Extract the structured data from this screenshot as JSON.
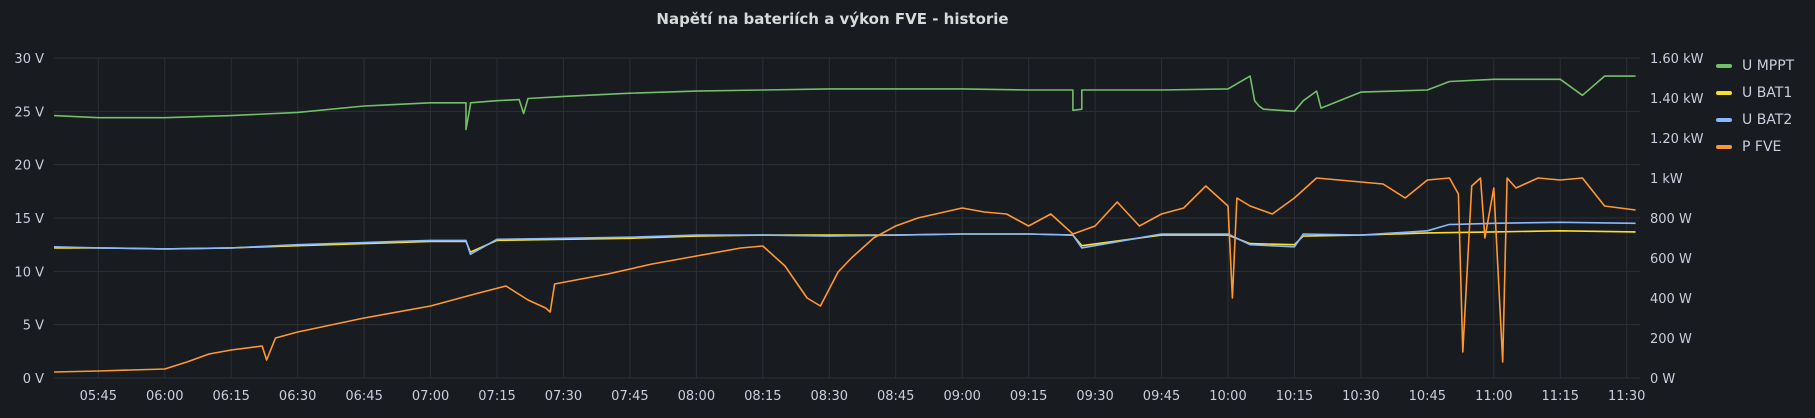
{
  "panel": {
    "title": "Napětí na bateriích a výkon FVE - historie"
  },
  "colors": {
    "U MPPT": "#73bf69",
    "U BAT1": "#fade2a",
    "U BAT2": "#8ab8ff",
    "P FVE": "#ff9830",
    "grid": "#2c3035",
    "text": "#ccccdc"
  },
  "chart_data": {
    "type": "line",
    "title": "Napětí na bateriích a výkon FVE - historie",
    "legend_position": "right",
    "grid": true,
    "x_ticks": [
      "05:45",
      "06:00",
      "06:15",
      "06:30",
      "06:45",
      "07:00",
      "07:15",
      "07:30",
      "07:45",
      "08:00",
      "08:15",
      "08:30",
      "08:45",
      "09:00",
      "09:15",
      "09:30",
      "09:45",
      "10:00",
      "10:15",
      "10:30",
      "10:45",
      "11:00",
      "11:15",
      "11:30"
    ],
    "y_left": {
      "ticks": [
        "0 V",
        "5 V",
        "10 V",
        "15 V",
        "20 V",
        "25 V",
        "30 V"
      ],
      "range": [
        0,
        30
      ]
    },
    "y_right": {
      "ticks": [
        "0 W",
        "200 W",
        "400 W",
        "600 W",
        "800 W",
        "1 kW",
        "1.20 kW",
        "1.40 kW",
        "1.60 kW"
      ],
      "range": [
        0,
        1600
      ]
    },
    "series": [
      {
        "name": "U MPPT",
        "axis": "left",
        "x": [
          "05:35",
          "05:45",
          "06:00",
          "06:15",
          "06:30",
          "06:45",
          "07:00",
          "07:08",
          "07:08",
          "07:09",
          "07:09",
          "07:15",
          "07:20",
          "07:21",
          "07:22",
          "07:30",
          "07:45",
          "08:00",
          "08:15",
          "08:30",
          "08:45",
          "09:00",
          "09:15",
          "09:25",
          "09:25",
          "09:27",
          "09:27",
          "09:45",
          "10:00",
          "10:05",
          "10:06",
          "10:07",
          "10:08",
          "10:15",
          "10:17",
          "10:20",
          "10:21",
          "10:30",
          "10:45",
          "10:50",
          "11:00",
          "11:15",
          "11:20",
          "11:25",
          "11:32"
        ],
        "values": [
          24.6,
          24.4,
          24.4,
          24.6,
          24.9,
          25.5,
          25.8,
          25.8,
          23.3,
          25.6,
          25.8,
          26.0,
          26.1,
          24.8,
          26.2,
          26.4,
          26.7,
          26.9,
          27.0,
          27.1,
          27.1,
          27.1,
          27.0,
          27.0,
          25.1,
          25.2,
          27.0,
          27.0,
          27.1,
          28.3,
          26.0,
          25.5,
          25.2,
          25.0,
          26.0,
          26.9,
          25.3,
          26.8,
          27.0,
          27.8,
          28.0,
          28.0,
          26.5,
          28.3,
          28.3
        ]
      },
      {
        "name": "U BAT1",
        "axis": "left",
        "x": [
          "05:35",
          "05:45",
          "06:00",
          "06:15",
          "06:30",
          "06:45",
          "07:00",
          "07:08",
          "07:09",
          "07:15",
          "07:30",
          "07:45",
          "08:00",
          "08:15",
          "08:30",
          "08:45",
          "09:00",
          "09:15",
          "09:25",
          "09:27",
          "09:45",
          "10:00",
          "10:05",
          "10:15",
          "10:17",
          "10:30",
          "10:45",
          "11:00",
          "11:15",
          "11:32"
        ],
        "values": [
          12.2,
          12.2,
          12.1,
          12.2,
          12.4,
          12.6,
          12.8,
          12.8,
          11.8,
          12.9,
          13.0,
          13.1,
          13.3,
          13.4,
          13.4,
          13.4,
          13.5,
          13.5,
          13.4,
          12.4,
          13.4,
          13.4,
          12.6,
          12.5,
          13.3,
          13.4,
          13.6,
          13.7,
          13.8,
          13.7
        ]
      },
      {
        "name": "U BAT2",
        "axis": "left",
        "x": [
          "05:35",
          "05:45",
          "06:00",
          "06:15",
          "06:30",
          "06:45",
          "07:00",
          "07:08",
          "07:09",
          "07:15",
          "07:30",
          "07:45",
          "08:00",
          "08:15",
          "08:30",
          "08:45",
          "09:00",
          "09:15",
          "09:25",
          "09:27",
          "09:45",
          "10:00",
          "10:05",
          "10:15",
          "10:17",
          "10:30",
          "10:45",
          "10:50",
          "10:51",
          "11:00",
          "11:15",
          "11:32"
        ],
        "values": [
          12.3,
          12.2,
          12.1,
          12.2,
          12.5,
          12.7,
          12.9,
          12.9,
          11.6,
          13.0,
          13.1,
          13.2,
          13.4,
          13.4,
          13.3,
          13.4,
          13.5,
          13.5,
          13.4,
          12.2,
          13.5,
          13.5,
          12.5,
          12.3,
          13.5,
          13.4,
          13.8,
          14.4,
          14.4,
          14.5,
          14.6,
          14.5
        ]
      },
      {
        "name": "P FVE",
        "axis": "right",
        "x": [
          "05:35",
          "05:45",
          "06:00",
          "06:05",
          "06:10",
          "06:15",
          "06:22",
          "06:23",
          "06:25",
          "06:30",
          "06:45",
          "07:00",
          "07:10",
          "07:17",
          "07:22",
          "07:26",
          "07:27",
          "07:28",
          "07:40",
          "07:50",
          "08:00",
          "08:10",
          "08:15",
          "08:20",
          "08:25",
          "08:28",
          "08:32",
          "08:35",
          "08:40",
          "08:45",
          "08:50",
          "09:00",
          "09:05",
          "09:10",
          "09:15",
          "09:20",
          "09:25",
          "09:30",
          "09:35",
          "09:40",
          "09:45",
          "09:50",
          "09:55",
          "10:00",
          "10:01",
          "10:02",
          "10:05",
          "10:10",
          "10:15",
          "10:20",
          "10:30",
          "10:35",
          "10:40",
          "10:45",
          "10:50",
          "10:52",
          "10:53",
          "10:55",
          "10:57",
          "10:58",
          "11:00",
          "11:02",
          "11:03",
          "11:05",
          "11:10",
          "11:15",
          "11:20",
          "11:25",
          "11:32"
        ],
        "values": [
          30,
          35,
          45,
          80,
          120,
          140,
          160,
          90,
          200,
          230,
          300,
          360,
          420,
          460,
          390,
          350,
          330,
          470,
          520,
          570,
          610,
          650,
          660,
          560,
          400,
          360,
          530,
          600,
          700,
          760,
          800,
          850,
          830,
          820,
          760,
          820,
          720,
          760,
          880,
          760,
          820,
          850,
          960,
          860,
          400,
          900,
          860,
          820,
          900,
          1000,
          980,
          970,
          900,
          990,
          1000,
          920,
          130,
          960,
          1000,
          700,
          950,
          80,
          1000,
          950,
          1000,
          990,
          1000,
          860,
          840
        ]
      }
    ]
  }
}
